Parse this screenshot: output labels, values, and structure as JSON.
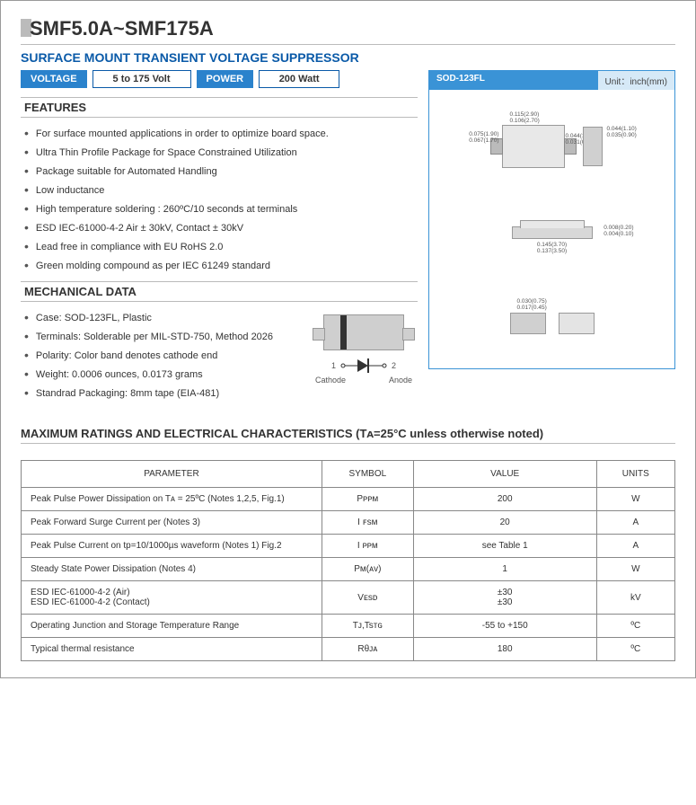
{
  "header": {
    "part_number": "SMF5.0A~SMF175A",
    "subtitle": "SURFACE MOUNT TRANSIENT VOLTAGE SUPPRESSOR"
  },
  "pills": {
    "voltage_label": "VOLTAGE",
    "voltage_value": "5 to 175  Volt",
    "power_label": "POWER",
    "power_value": "200  Watt"
  },
  "package": {
    "name": "SOD-123FL",
    "unit_label": "Unit：inch(mm)",
    "top_dims": {
      "left": "0.075(1.90)\n0.067(1.70)",
      "top": "0.115(2.90)\n0.106(2.70)",
      "right": "0.044(1.10)\n0.031(0.80)",
      "right2": "0.044(1.10)\n0.035(0.90)"
    },
    "side_dims": {
      "bottom": "0.145(3.70)\n0.137(3.50)",
      "right": "0.008(0.20)\n0.004(0.10)"
    },
    "pad_dims": {
      "top": "0.030(0.75)\n0.017(0.45)"
    }
  },
  "features": {
    "heading": "FEATURES",
    "items": [
      "For surface mounted applications in order to optimize board space.",
      "Ultra Thin Profile Package for Space Constrained Utilization",
      "Package suitable for Automated Handling",
      "Low inductance",
      "High temperature soldering : 260ºC/10 seconds at terminals",
      "ESD IEC-61000-4-2 Air ± 30kV, Contact ± 30kV",
      "Lead free in compliance with EU RoHS 2.0",
      "Green molding compound as per IEC 61249 standard"
    ]
  },
  "mechanical": {
    "heading": "MECHANICAL DATA",
    "items": [
      "Case: SOD-123FL, Plastic",
      "Terminals: Solderable per MIL-STD-750, Method 2026",
      "Polarity: Color band denotes cathode end",
      "Weight: 0.0006 ounces, 0.0173 grams",
      "Standrad Packaging: 8mm tape (EIA-481)"
    ],
    "cathode": "Cathode",
    "anode": "Anode",
    "pin1": "1",
    "pin2": "2"
  },
  "ratings": {
    "title": "MAXIMUM  RATINGS  AND  ELECTRICAL  CHARACTERISTICS (Tᴀ=25°C unless otherwise noted)",
    "columns": {
      "parameter": "PARAMETER",
      "symbol": "SYMBOL",
      "value": "VALUE",
      "units": "UNITS"
    },
    "rows": [
      {
        "param": "Peak Pulse Power Dissipation on Tᴀ = 25ºC (Notes 1,2,5, Fig.1)",
        "symbol": "Pᴘᴘᴍ",
        "value": "200",
        "units": "W"
      },
      {
        "param": "Peak Forward Surge Current per  (Notes 3)",
        "symbol": "I ꜰsᴍ",
        "value": "20",
        "units": "A"
      },
      {
        "param": "Peak Pulse Current on tp=10/1000µs waveform (Notes 1) Fig.2",
        "symbol": "I ᴘᴘᴍ",
        "value": "see Table 1",
        "units": "A"
      },
      {
        "param": "Steady State Power Dissipation (Notes 4)",
        "symbol": "Pᴍ(ᴀᴠ)",
        "value": "1",
        "units": "W"
      },
      {
        "param": "ESD IEC-61000-4-2 (Air)\nESD IEC-61000-4-2 (Contact)",
        "symbol": "Vᴇsᴅ",
        "value": "±30\n±30",
        "units": "kV"
      },
      {
        "param": "Operating Junction and Storage Temperature Range",
        "symbol": "Tᴊ,Tsᴛɢ",
        "value": "-55 to +150",
        "units": "ºC"
      },
      {
        "param": "Typical thermal resistance",
        "symbol": "Rθᴊᴀ",
        "value": "180",
        "units": "ºC"
      }
    ]
  }
}
